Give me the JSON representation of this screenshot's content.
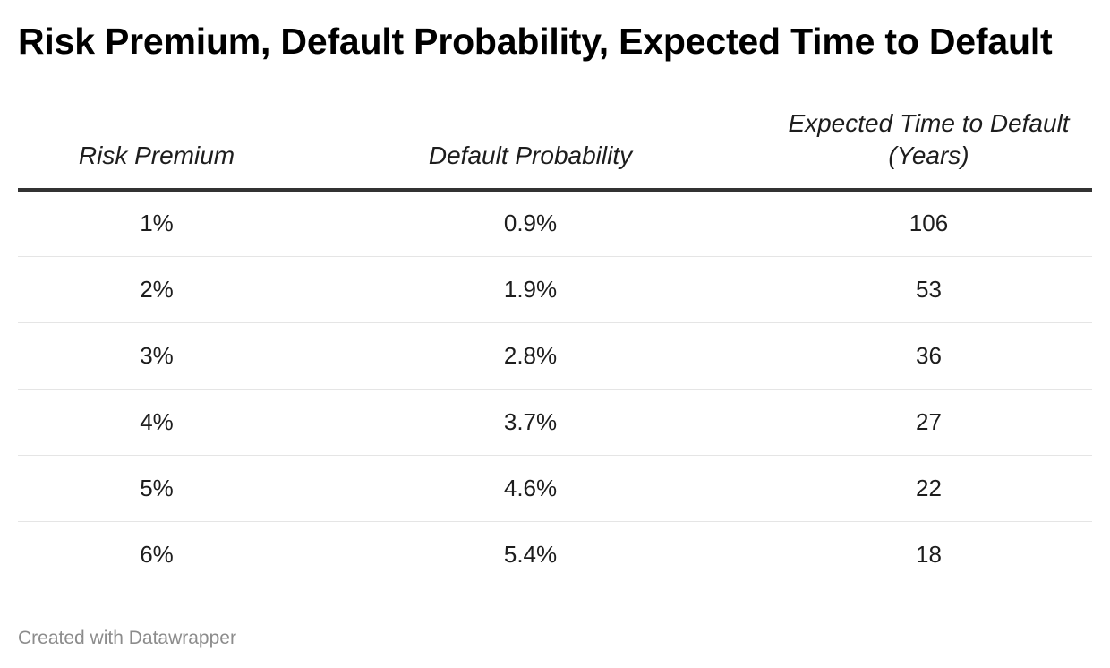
{
  "title": "Risk Premium, Default Probability, Expected Time to Default",
  "footer": "Created with Datawrapper",
  "chart_data": {
    "type": "table",
    "title": "Risk Premium, Default Probability, Expected Time to Default",
    "columns": [
      "Risk Premium",
      "Default Probability",
      "Expected Time to Default (Years)"
    ],
    "rows": [
      [
        "1%",
        "0.9%",
        "106"
      ],
      [
        "2%",
        "1.9%",
        "53"
      ],
      [
        "3%",
        "2.8%",
        "36"
      ],
      [
        "4%",
        "3.7%",
        "27"
      ],
      [
        "5%",
        "4.6%",
        "22"
      ],
      [
        "6%",
        "5.4%",
        "18"
      ]
    ]
  }
}
